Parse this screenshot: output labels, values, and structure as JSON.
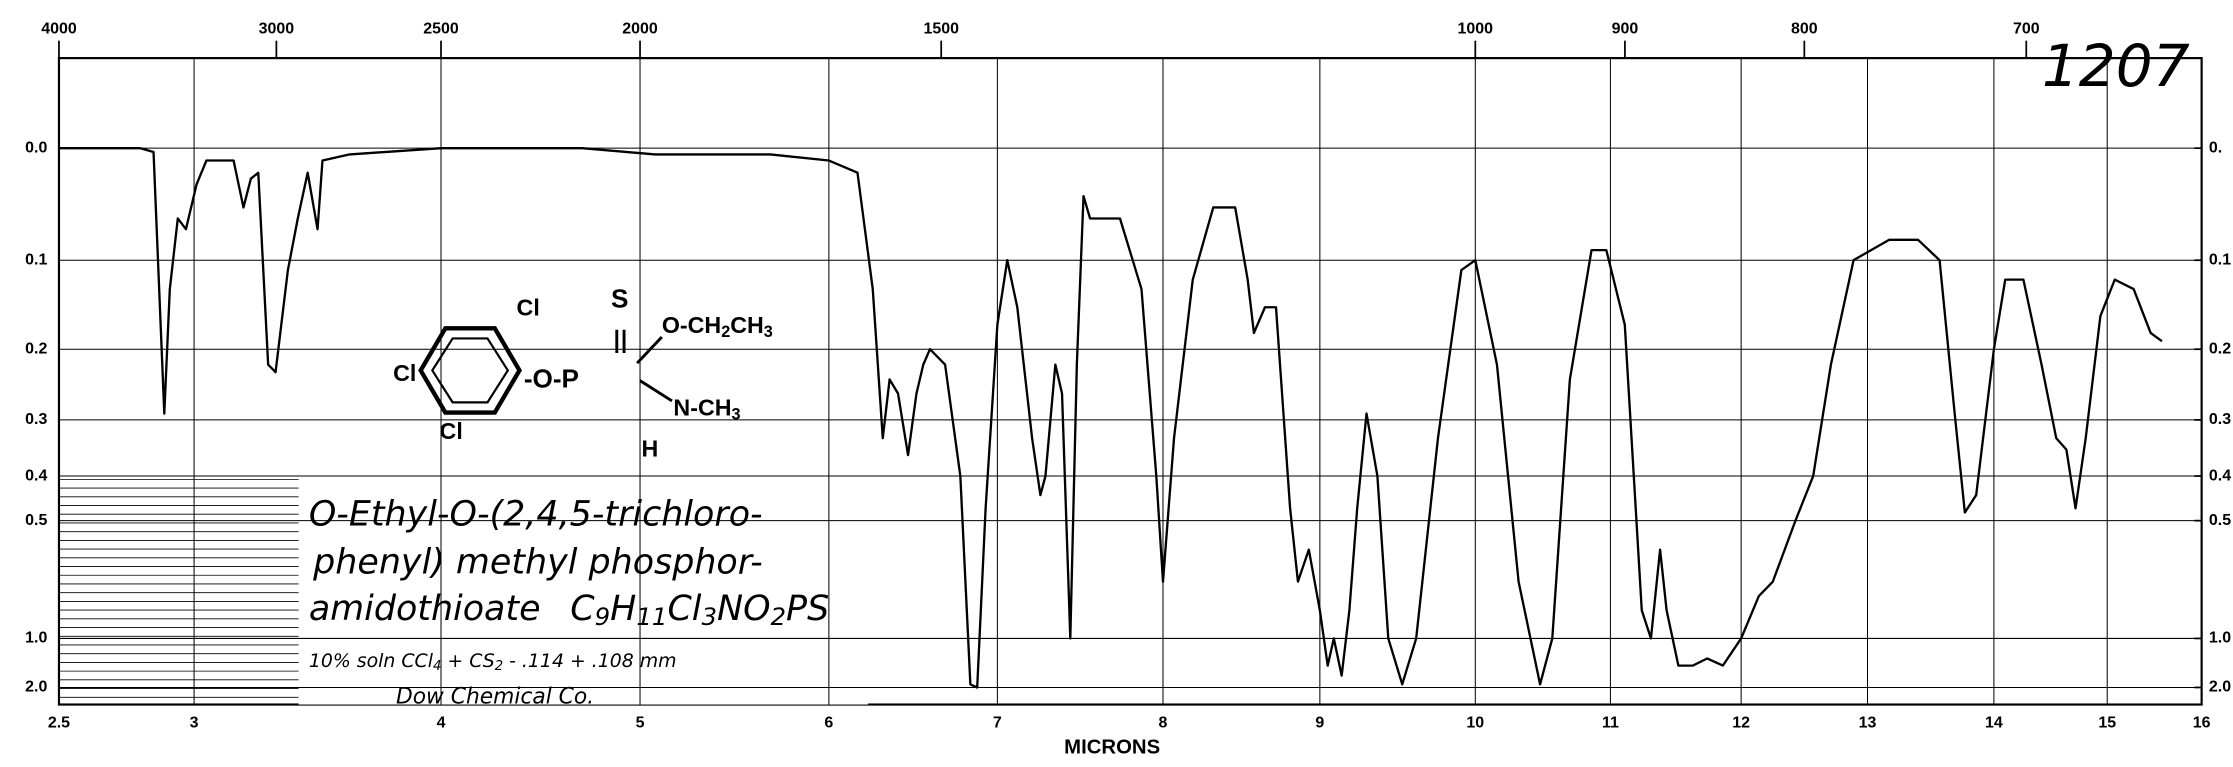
{
  "chart_data": {
    "type": "line",
    "sample_id": "1207",
    "xlabel": "MICRONS",
    "xlim": [
      2.5,
      16
    ],
    "xticks": [
      2.5,
      3,
      4,
      5,
      6,
      7,
      8,
      9,
      10,
      11,
      12,
      13,
      14,
      15,
      16
    ],
    "x2ticks": [
      4000,
      3000,
      2500,
      2000,
      1500,
      1000,
      900,
      800,
      700
    ],
    "ylim": [
      0,
      2
    ],
    "yscale": "absorbance",
    "yticks": [
      {
        "value": 0,
        "label": "0.0"
      },
      0.1,
      0.2,
      0.3,
      0.4,
      0.5,
      {
        "value": 1,
        "label": "1.0"
      },
      {
        "value": 2,
        "label": "2.0"
      }
    ],
    "y2ticks": [
      {
        "value": 0,
        "label": "0."
      },
      0.1,
      0.2,
      0.3,
      0.4,
      0.5,
      {
        "value": 1,
        "label": "1.0"
      },
      {
        "value": 2,
        "label": "2.0"
      }
    ],
    "grid": true,
    "name_lines": [
      "O-Ethyl-O-(2,4,5-trichloro-",
      "phenyl) methyl phosphor-",
      "amidothioate"
    ],
    "formula": [
      "C",
      "9",
      "H",
      "11",
      "Cl",
      "3",
      "NO",
      "2",
      "PS"
    ],
    "solvent": [
      "10% soln CCl",
      "4",
      " + CS",
      "2",
      " - .114 + .108 mm"
    ],
    "source": "Dow Chemical Co.",
    "structure": {
      "cl_top": "Cl",
      "cl_left": "Cl",
      "cl_bottom": "Cl",
      "ester": "-O-P",
      "sulfur": "S",
      "ethoxy": [
        "O-CH",
        "2",
        "CH",
        "3"
      ],
      "amine": [
        "N-CH",
        "3"
      ],
      "hydrogen": "H"
    },
    "x": [
      2.5,
      2.8,
      2.85,
      2.89,
      2.91,
      2.94,
      2.97,
      3.01,
      3.05,
      3.16,
      3.2,
      3.23,
      3.26,
      3.3,
      3.33,
      3.38,
      3.42,
      3.46,
      3.5,
      3.52,
      3.63,
      4.0,
      4.71,
      5.08,
      5.69,
      6.0,
      6.17,
      6.26,
      6.32,
      6.36,
      6.41,
      6.47,
      6.52,
      6.56,
      6.6,
      6.69,
      6.78,
      6.84,
      6.88,
      6.93,
      7.0,
      7.06,
      7.12,
      7.21,
      7.26,
      7.29,
      7.35,
      7.39,
      7.44,
      7.48,
      7.52,
      7.56,
      7.74,
      7.87,
      7.96,
      8.0,
      8.07,
      8.19,
      8.32,
      8.46,
      8.54,
      8.58,
      8.65,
      8.72,
      8.81,
      8.86,
      8.93,
      9.0,
      9.05,
      9.09,
      9.14,
      9.19,
      9.24,
      9.3,
      9.37,
      9.44,
      9.53,
      9.62,
      9.76,
      9.91,
      10.0,
      10.16,
      10.32,
      10.48,
      10.57,
      10.7,
      10.86,
      10.97,
      11.11,
      11.24,
      11.31,
      11.38,
      11.43,
      11.52,
      11.63,
      11.74,
      11.86,
      12.0,
      12.14,
      12.25,
      12.43,
      12.57,
      12.71,
      12.89,
      13.17,
      13.4,
      13.57,
      13.69,
      13.77,
      13.86,
      14.0,
      14.1,
      14.26,
      14.42,
      14.55,
      14.64,
      14.72,
      14.81,
      14.94,
      15.08,
      15.28,
      15.46,
      15.58
    ],
    "series": [
      {
        "color": "#000000",
        "values": [
          0,
          0,
          0.003,
          0.29,
          0.13,
          0.06,
          0.07,
          0.03,
          0.01,
          0.01,
          0.05,
          0.025,
          0.02,
          0.22,
          0.23,
          0.11,
          0.06,
          0.02,
          0.07,
          0.01,
          0.005,
          0,
          0,
          0.005,
          0.005,
          0.01,
          0.02,
          0.13,
          0.33,
          0.24,
          0.26,
          0.36,
          0.26,
          0.22,
          0.2,
          0.22,
          0.4,
          1.8,
          2.0,
          0.47,
          0.17,
          0.1,
          0.15,
          0.33,
          0.44,
          0.4,
          0.22,
          0.26,
          1.0,
          0.22,
          0.04,
          0.06,
          0.06,
          0.13,
          0.4,
          0.69,
          0.33,
          0.12,
          0.05,
          0.05,
          0.12,
          0.18,
          0.15,
          0.15,
          0.47,
          0.69,
          0.58,
          0.82,
          1.3,
          1.0,
          1.5,
          0.82,
          0.47,
          0.29,
          0.4,
          1.0,
          1.8,
          1.0,
          0.33,
          0.11,
          0.1,
          0.22,
          0.69,
          1.8,
          1.0,
          0.24,
          0.09,
          0.09,
          0.17,
          0.82,
          1.0,
          0.58,
          0.82,
          1.3,
          1.3,
          1.2,
          1.3,
          1.0,
          0.75,
          0.69,
          0.5,
          0.4,
          0.22,
          0.1,
          0.08,
          0.08,
          0.1,
          0.29,
          0.48,
          0.44,
          0.2,
          0.12,
          0.12,
          0.22,
          0.33,
          0.35,
          0.47,
          0.33,
          0.16,
          0.12,
          0.13,
          0.18,
          0.19
        ]
      }
    ]
  }
}
